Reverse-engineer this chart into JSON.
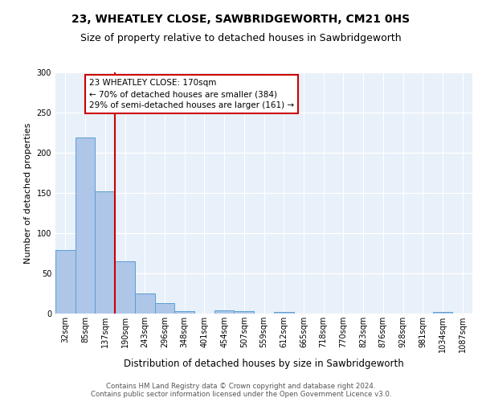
{
  "title1": "23, WHEATLEY CLOSE, SAWBRIDGEWORTH, CM21 0HS",
  "title2": "Size of property relative to detached houses in Sawbridgeworth",
  "xlabel": "Distribution of detached houses by size in Sawbridgeworth",
  "ylabel": "Number of detached properties",
  "bar_labels": [
    "32sqm",
    "85sqm",
    "137sqm",
    "190sqm",
    "243sqm",
    "296sqm",
    "348sqm",
    "401sqm",
    "454sqm",
    "507sqm",
    "559sqm",
    "612sqm",
    "665sqm",
    "718sqm",
    "770sqm",
    "823sqm",
    "876sqm",
    "928sqm",
    "981sqm",
    "1034sqm",
    "1087sqm"
  ],
  "bar_values": [
    79,
    219,
    152,
    65,
    25,
    13,
    3,
    0,
    4,
    3,
    0,
    2,
    0,
    0,
    0,
    0,
    0,
    0,
    0,
    2,
    0
  ],
  "bar_color": "#aec6e8",
  "bar_edge_color": "#5a9fd4",
  "vline_x": 2.5,
  "vline_color": "#cc0000",
  "annotation_text": "23 WHEATLEY CLOSE: 170sqm\n← 70% of detached houses are smaller (384)\n29% of semi-detached houses are larger (161) →",
  "annotation_box_color": "#ffffff",
  "annotation_box_edge_color": "#cc0000",
  "ylim": [
    0,
    300
  ],
  "yticks": [
    0,
    50,
    100,
    150,
    200,
    250,
    300
  ],
  "background_color": "#e8f0fa",
  "grid_color": "#ffffff",
  "footer_text": "Contains HM Land Registry data © Crown copyright and database right 2024.\nContains public sector information licensed under the Open Government Licence v3.0.",
  "title1_fontsize": 10,
  "title2_fontsize": 9,
  "ylabel_fontsize": 8,
  "xlabel_fontsize": 8.5,
  "tick_fontsize": 7,
  "annotation_fontsize": 7.5,
  "footer_fontsize": 6.2
}
